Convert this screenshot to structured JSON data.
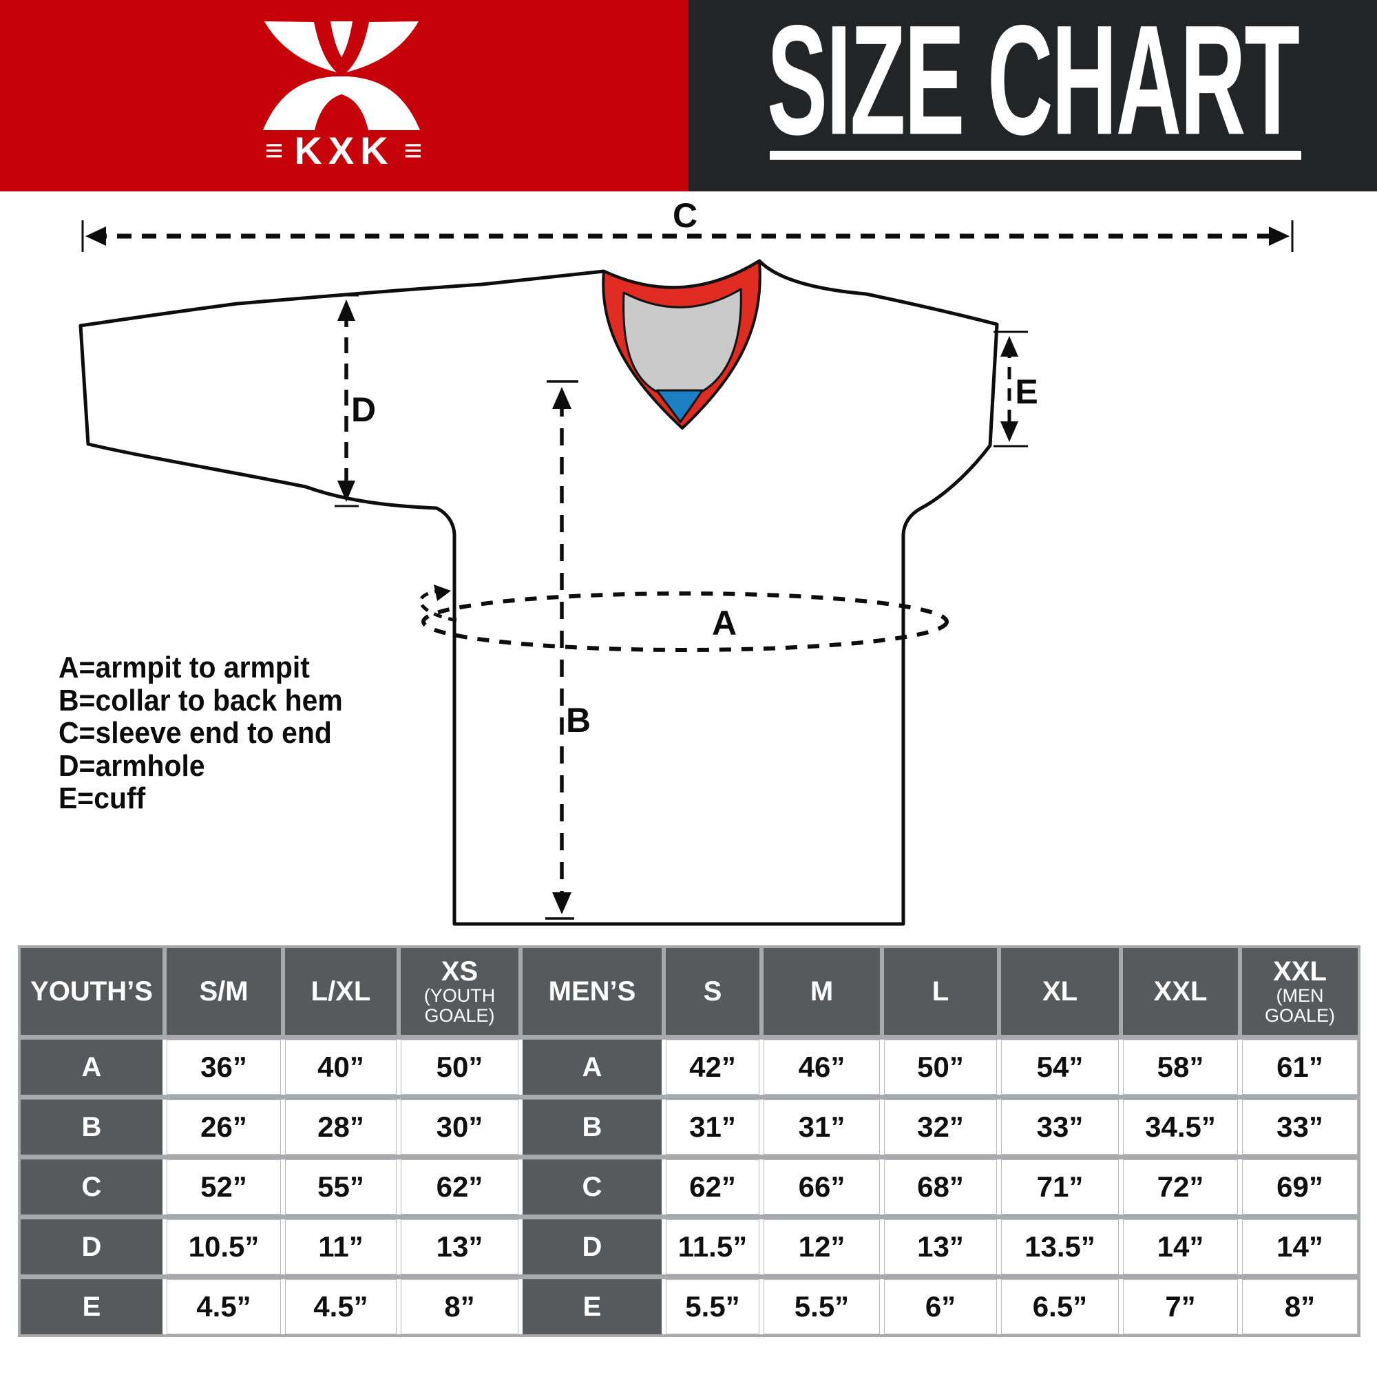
{
  "header": {
    "brand": {
      "name": "KXK",
      "left_bars": "≡",
      "right_bars": "≡"
    },
    "title": "SIZE CHART"
  },
  "diagram": {
    "markers": {
      "a": "A",
      "b": "B",
      "c": "C",
      "d": "D",
      "e": "E"
    },
    "legend": [
      "A=armpit to armpit",
      "B=collar to back hem",
      "C=sleeve end to end",
      "D=armhole",
      "E=cuff"
    ]
  },
  "table": {
    "youth": {
      "label": "YOUTH’S",
      "columns": [
        {
          "main": "S/M"
        },
        {
          "main": "L/XL"
        },
        {
          "main": "XS",
          "sub": "(YOUTH GOALE)"
        }
      ],
      "rows": [
        {
          "label": "A",
          "values": [
            "36”",
            "40”",
            "50”"
          ]
        },
        {
          "label": "B",
          "values": [
            "26”",
            "28”",
            "30”"
          ]
        },
        {
          "label": "C",
          "values": [
            "52”",
            "55”",
            "62”"
          ]
        },
        {
          "label": "D",
          "values": [
            "10.5”",
            "11”",
            "13”"
          ]
        },
        {
          "label": "E",
          "values": [
            "4.5”",
            "4.5”",
            "8”"
          ]
        }
      ]
    },
    "mens": {
      "label": "MEN’S",
      "columns": [
        {
          "main": "S"
        },
        {
          "main": "M"
        },
        {
          "main": "L"
        },
        {
          "main": "XL"
        },
        {
          "main": "XXL"
        },
        {
          "main": "XXL",
          "sub": "(MEN GOALE)"
        }
      ],
      "rows": [
        {
          "label": "A",
          "values": [
            "42”",
            "46”",
            "50”",
            "54”",
            "58”",
            "61”"
          ]
        },
        {
          "label": "B",
          "values": [
            "31”",
            "31”",
            "32”",
            "33”",
            "34.5”",
            "33”"
          ]
        },
        {
          "label": "C",
          "values": [
            "62”",
            "66”",
            "68”",
            "71”",
            "72”",
            "69”"
          ]
        },
        {
          "label": "D",
          "values": [
            "11.5”",
            "12”",
            "13”",
            "13.5”",
            "14”",
            "14”"
          ]
        },
        {
          "label": "E",
          "values": [
            "5.5”",
            "5.5”",
            "6”",
            "6.5”",
            "7”",
            "8”"
          ]
        }
      ]
    }
  },
  "colors": {
    "brand_red": "#c70109",
    "header_dark": "#232426",
    "collar_red": "#df2b21",
    "collar_gray": "#c9c9c9",
    "collar_blue": "#1b7fc4",
    "table_header_gray": "#58595b",
    "table_divider_gray": "#a7a9ac",
    "line_black": "#0d0d0d"
  }
}
